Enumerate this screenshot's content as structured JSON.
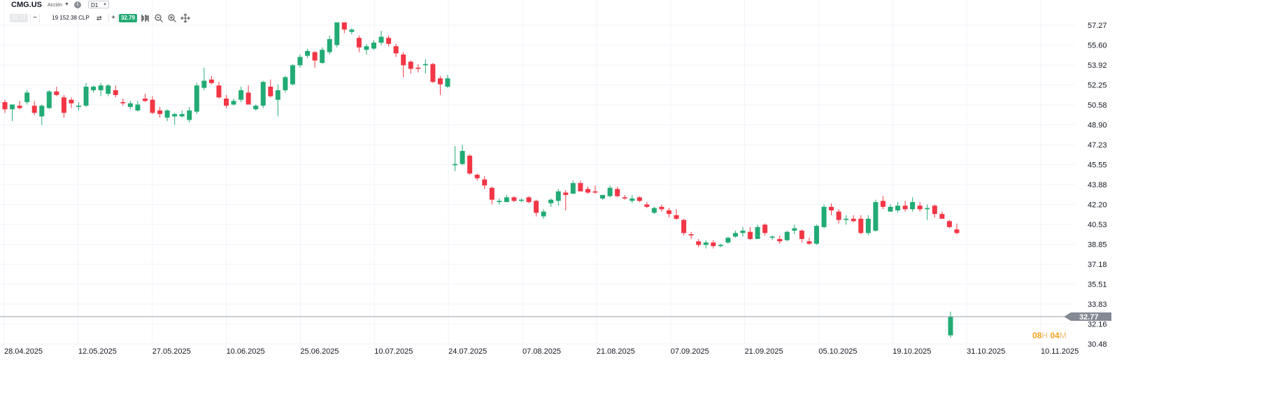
{
  "header": {
    "symbol": "CMG.US",
    "instrument_type": "Acción",
    "timeframe": "D1",
    "bid_price": "32.77",
    "volume_value": "19 152.38",
    "volume_currency": "CLP",
    "ask_price": "32.79",
    "icons": [
      "info-icon",
      "swap-icon",
      "indicators-icon",
      "zoom-out-icon",
      "zoom-in-icon",
      "crosshair-icon"
    ]
  },
  "timer": {
    "hours": "08",
    "hours_unit": "H",
    "minutes": "04",
    "minutes_unit": "M"
  },
  "colors": {
    "up": "#22ab74",
    "down": "#f23645",
    "grid": "#f0f3fa",
    "current_line": "#9aa1ab",
    "price_badge": "#848a94",
    "timer": "#f7a21b"
  },
  "chart_data": {
    "type": "candlestick",
    "y_ticks": [
      "57.27",
      "55.60",
      "53.92",
      "52.25",
      "50.58",
      "48.90",
      "47.23",
      "45.55",
      "43.88",
      "42.20",
      "40.53",
      "38.85",
      "37.18",
      "35.51",
      "33.83",
      "32.16",
      "30.48"
    ],
    "x_ticks": [
      "28.04.2025",
      "12.05.2025",
      "27.05.2025",
      "10.06.2025",
      "25.06.2025",
      "10.07.2025",
      "24.07.2025",
      "07.08.2025",
      "21.08.2025",
      "07.09.2025",
      "21.09.2025",
      "05.10.2025",
      "19.10.2025",
      "31.10.2025",
      "10.11.2025"
    ],
    "ylim": [
      30.48,
      57.27
    ],
    "current_price": "32.77",
    "grid": true,
    "candles": [
      [
        50.8,
        51.0,
        49.9,
        50.2
      ],
      [
        50.2,
        50.6,
        49.2,
        50.6
      ],
      [
        50.5,
        50.9,
        50.2,
        50.3
      ],
      [
        50.8,
        51.8,
        50.6,
        51.6
      ],
      [
        50.5,
        50.9,
        49.7,
        49.9
      ],
      [
        49.6,
        50.6,
        48.9,
        50.5
      ],
      [
        50.3,
        51.8,
        50.2,
        51.7
      ],
      [
        51.7,
        52.1,
        51.3,
        51.4
      ],
      [
        51.2,
        51.4,
        49.5,
        49.9
      ],
      [
        51.0,
        51.2,
        50.3,
        50.7
      ],
      [
        50.4,
        50.8,
        50.1,
        50.5
      ],
      [
        50.5,
        52.4,
        50.4,
        52.1
      ],
      [
        51.8,
        52.2,
        51.6,
        52.1
      ],
      [
        51.8,
        52.4,
        51.3,
        52.2
      ],
      [
        51.5,
        52.3,
        51.3,
        52.2
      ],
      [
        51.8,
        52.2,
        51.2,
        51.4
      ],
      [
        50.8,
        51.1,
        50.5,
        50.7
      ],
      [
        50.4,
        50.9,
        50.2,
        50.7
      ],
      [
        50.1,
        50.9,
        50.0,
        50.6
      ],
      [
        51.1,
        51.5,
        50.8,
        50.9
      ],
      [
        51.0,
        51.3,
        49.8,
        49.9
      ],
      [
        50.1,
        50.4,
        49.5,
        49.8
      ],
      [
        49.5,
        50.2,
        49.2,
        50.1
      ],
      [
        49.6,
        49.9,
        48.9,
        49.8
      ],
      [
        49.6,
        50.1,
        49.5,
        49.8
      ],
      [
        49.3,
        50.4,
        49.1,
        50.1
      ],
      [
        50.0,
        52.4,
        49.8,
        52.2
      ],
      [
        52.0,
        53.7,
        51.8,
        52.6
      ],
      [
        52.7,
        53.0,
        52.3,
        52.4
      ],
      [
        52.2,
        52.5,
        51.1,
        51.2
      ],
      [
        51.1,
        51.4,
        50.3,
        50.5
      ],
      [
        50.6,
        51.1,
        50.5,
        50.9
      ],
      [
        51.0,
        52.1,
        50.8,
        51.8
      ],
      [
        51.6,
        52.2,
        50.6,
        50.6
      ],
      [
        50.2,
        50.6,
        50.1,
        50.5
      ],
      [
        50.5,
        52.6,
        50.3,
        52.5
      ],
      [
        52.1,
        52.7,
        51.2,
        51.3
      ],
      [
        51.0,
        52.3,
        49.6,
        51.8
      ],
      [
        51.8,
        53.0,
        51.6,
        52.9
      ],
      [
        52.3,
        54.0,
        52.2,
        53.9
      ],
      [
        53.9,
        54.8,
        53.7,
        54.6
      ],
      [
        54.7,
        55.3,
        54.5,
        55.1
      ],
      [
        55.0,
        55.1,
        53.7,
        54.3
      ],
      [
        54.1,
        55.4,
        54.0,
        55.2
      ],
      [
        55.0,
        56.4,
        54.8,
        56.1
      ],
      [
        55.6,
        57.5,
        55.4,
        57.5
      ],
      [
        57.5,
        57.5,
        56.6,
        56.9
      ],
      [
        56.7,
        57.0,
        56.5,
        56.9
      ],
      [
        56.2,
        56.4,
        55.0,
        55.4
      ],
      [
        55.2,
        55.7,
        54.8,
        55.5
      ],
      [
        55.3,
        56.0,
        55.2,
        55.8
      ],
      [
        55.8,
        56.8,
        55.6,
        56.3
      ],
      [
        56.2,
        56.4,
        55.5,
        55.7
      ],
      [
        55.5,
        55.7,
        54.6,
        54.9
      ],
      [
        54.8,
        55.0,
        52.9,
        53.9
      ],
      [
        54.2,
        54.3,
        53.2,
        53.6
      ],
      [
        53.7,
        54.0,
        53.3,
        53.6
      ],
      [
        53.9,
        54.4,
        53.2,
        54.0
      ],
      [
        54.0,
        54.1,
        52.4,
        52.5
      ],
      [
        52.8,
        53.0,
        51.4,
        52.3
      ],
      [
        52.1,
        53.1,
        52.0,
        52.8
      ],
      [
        45.5,
        47.1,
        45.0,
        45.6
      ],
      [
        45.6,
        47.2,
        45.5,
        46.7
      ],
      [
        46.3,
        46.4,
        44.7,
        44.8
      ],
      [
        44.7,
        44.8,
        44.2,
        44.4
      ],
      [
        44.3,
        44.6,
        43.5,
        43.8
      ],
      [
        43.6,
        43.7,
        42.2,
        42.6
      ],
      [
        42.4,
        42.7,
        42.2,
        42.5
      ],
      [
        42.4,
        43.0,
        42.4,
        42.8
      ],
      [
        42.8,
        42.9,
        42.4,
        42.5
      ],
      [
        42.5,
        42.7,
        42.4,
        42.6
      ],
      [
        42.8,
        42.9,
        42.3,
        42.4
      ],
      [
        42.5,
        42.6,
        41.2,
        41.5
      ],
      [
        41.2,
        41.8,
        41.0,
        41.6
      ],
      [
        42.3,
        42.7,
        42.0,
        42.6
      ],
      [
        42.5,
        43.5,
        42.1,
        43.3
      ],
      [
        43.2,
        43.4,
        41.7,
        43.0
      ],
      [
        43.1,
        44.2,
        43.1,
        44.0
      ],
      [
        44.0,
        44.2,
        43.3,
        43.3
      ],
      [
        43.5,
        43.7,
        43.1,
        43.2
      ],
      [
        43.3,
        43.8,
        43.1,
        43.2
      ],
      [
        42.7,
        43.0,
        42.6,
        43.0
      ],
      [
        42.9,
        43.8,
        42.8,
        43.6
      ],
      [
        43.5,
        43.7,
        42.8,
        42.9
      ],
      [
        42.8,
        43.0,
        42.6,
        42.7
      ],
      [
        42.5,
        43.0,
        42.3,
        42.7
      ],
      [
        42.8,
        42.9,
        42.4,
        42.5
      ],
      [
        42.2,
        42.4,
        41.9,
        42.0
      ],
      [
        41.5,
        42.0,
        41.4,
        41.9
      ],
      [
        42.0,
        42.2,
        41.6,
        41.8
      ],
      [
        41.7,
        41.9,
        41.1,
        41.4
      ],
      [
        41.3,
        41.8,
        40.9,
        41.0
      ],
      [
        40.9,
        41.0,
        39.6,
        39.8
      ],
      [
        39.7,
        39.9,
        39.3,
        39.6
      ],
      [
        39.1,
        39.3,
        38.6,
        38.8
      ],
      [
        38.8,
        39.2,
        38.5,
        39.0
      ],
      [
        39.0,
        39.2,
        38.5,
        38.7
      ],
      [
        38.7,
        38.9,
        38.6,
        38.8
      ],
      [
        39.0,
        39.5,
        38.9,
        39.4
      ],
      [
        39.5,
        40.0,
        39.4,
        39.8
      ],
      [
        39.8,
        40.3,
        39.5,
        40.0
      ],
      [
        39.9,
        40.3,
        39.2,
        39.3
      ],
      [
        39.3,
        40.5,
        39.3,
        40.3
      ],
      [
        40.5,
        40.6,
        39.6,
        39.8
      ],
      [
        39.4,
        39.6,
        39.2,
        39.5
      ],
      [
        39.3,
        39.6,
        38.9,
        39.1
      ],
      [
        39.2,
        40.0,
        39.1,
        39.9
      ],
      [
        40.0,
        40.5,
        39.7,
        40.2
      ],
      [
        40.0,
        40.1,
        39.0,
        39.3
      ],
      [
        39.1,
        39.4,
        38.8,
        38.9
      ],
      [
        38.9,
        40.5,
        38.8,
        40.4
      ],
      [
        40.3,
        42.2,
        40.2,
        42.0
      ],
      [
        42.0,
        42.3,
        41.3,
        41.7
      ],
      [
        41.6,
        41.8,
        40.6,
        40.9
      ],
      [
        40.9,
        41.3,
        40.5,
        41.0
      ],
      [
        41.0,
        41.3,
        40.7,
        40.8
      ],
      [
        41.0,
        41.3,
        39.7,
        39.8
      ],
      [
        39.8,
        41.3,
        39.6,
        41.0
      ],
      [
        40.0,
        42.6,
        39.9,
        42.4
      ],
      [
        42.5,
        42.9,
        41.8,
        42.0
      ],
      [
        41.6,
        42.2,
        41.6,
        42.0
      ],
      [
        41.7,
        42.4,
        41.5,
        42.1
      ],
      [
        42.1,
        42.5,
        41.6,
        41.8
      ],
      [
        41.8,
        42.8,
        41.6,
        42.4
      ],
      [
        42.1,
        42.4,
        41.6,
        41.8
      ],
      [
        41.8,
        42.2,
        40.9,
        41.9
      ],
      [
        42.1,
        42.2,
        41.1,
        41.4
      ],
      [
        41.4,
        41.6,
        41.0,
        41.0
      ],
      [
        40.8,
        40.9,
        40.2,
        40.3
      ],
      [
        40.1,
        40.6,
        39.7,
        39.8
      ],
      [
        31.2,
        33.2,
        31.0,
        32.77
      ]
    ]
  }
}
